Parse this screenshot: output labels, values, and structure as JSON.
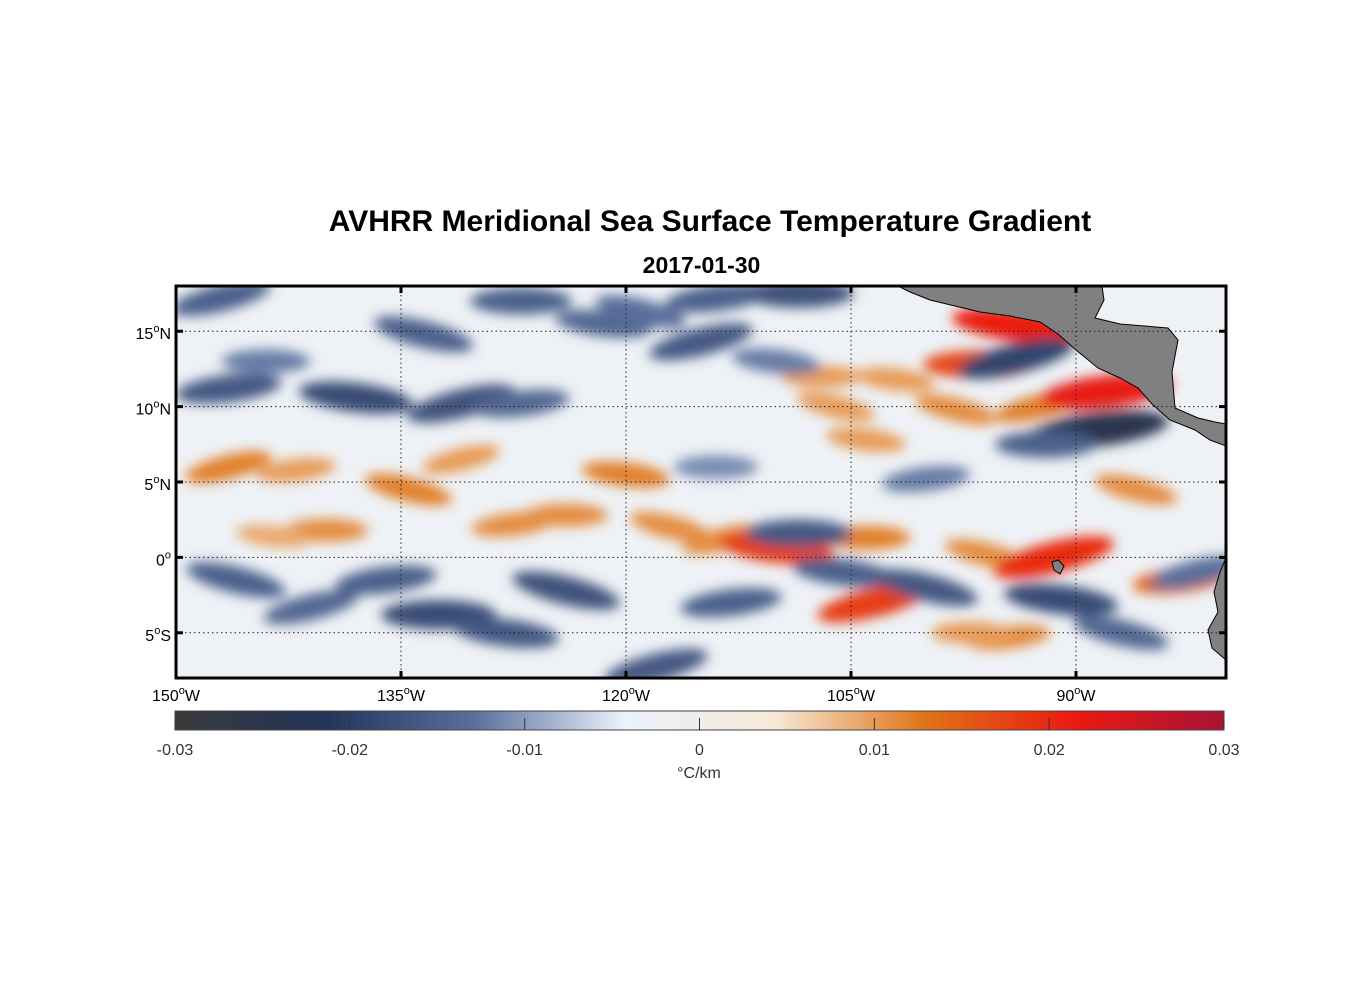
{
  "title": "AVHRR Meridional Sea Surface Temperature Gradient",
  "subtitle": "2017-01-30",
  "map": {
    "lon_range": [
      -150,
      -80
    ],
    "lat_range": [
      -8,
      18
    ],
    "land_color": "#808080",
    "gridlines": "dotted",
    "lat_ticks": [
      {
        "value": 15,
        "num": "15",
        "hemi": "N"
      },
      {
        "value": 10,
        "num": "10",
        "hemi": "N"
      },
      {
        "value": 5,
        "num": "5",
        "hemi": "N"
      },
      {
        "value": 0,
        "num": "0",
        "hemi": ""
      },
      {
        "value": -5,
        "num": "5",
        "hemi": "S"
      }
    ],
    "lon_ticks": [
      {
        "value": -150,
        "num": "150",
        "hemi": "W"
      },
      {
        "value": -135,
        "num": "135",
        "hemi": "W"
      },
      {
        "value": -120,
        "num": "120",
        "hemi": "W"
      },
      {
        "value": -105,
        "num": "105",
        "hemi": "W"
      },
      {
        "value": -90,
        "num": "90",
        "hemi": "W"
      }
    ]
  },
  "colorbar": {
    "min": -0.03,
    "max": 0.03,
    "ticks": [
      "-0.03",
      "-0.02",
      "-0.01",
      "0",
      "0.01",
      "0.02",
      "0.03"
    ],
    "tick_values": [
      -0.03,
      -0.02,
      -0.01,
      0,
      0.01,
      0.02,
      0.03
    ],
    "unit_label": "°C/km",
    "stops": [
      "#3a3a3c",
      "#223459",
      "#5a6f9c",
      "#eaf2fb",
      "#f7e9d8",
      "#df7418",
      "#eb1a10",
      "#a81336"
    ]
  },
  "features": {
    "warm": [
      {
        "lon": -146.5,
        "lat": 6.0,
        "value": 0.012
      },
      {
        "lon": -142.0,
        "lat": 5.8,
        "value": 0.01
      },
      {
        "lon": -140.0,
        "lat": 1.8,
        "value": 0.011
      },
      {
        "lon": -143.5,
        "lat": 1.4,
        "value": 0.009
      },
      {
        "lon": -134.5,
        "lat": 4.5,
        "value": 0.012
      },
      {
        "lon": -131.0,
        "lat": 6.5,
        "value": 0.01
      },
      {
        "lon": -127.5,
        "lat": 2.2,
        "value": 0.011
      },
      {
        "lon": -124.0,
        "lat": 2.8,
        "value": 0.011
      },
      {
        "lon": -120.0,
        "lat": 5.5,
        "value": 0.012
      },
      {
        "lon": -117.0,
        "lat": 2.0,
        "value": 0.011
      },
      {
        "lon": -113.5,
        "lat": 1.2,
        "value": 0.011
      },
      {
        "lon": -109.0,
        "lat": 0.7,
        "value": 0.012
      },
      {
        "lon": -104.0,
        "lat": 1.3,
        "value": 0.012
      },
      {
        "lon": -110.0,
        "lat": 0.6,
        "value": 0.018
      },
      {
        "lon": -96.0,
        "lat": 0.2,
        "value": 0.011
      },
      {
        "lon": -91.5,
        "lat": 0.0,
        "value": 0.02
      },
      {
        "lon": -94.5,
        "lat": -5.3,
        "value": 0.011
      },
      {
        "lon": -97.0,
        "lat": -5.0,
        "value": 0.01
      },
      {
        "lon": -104.0,
        "lat": 7.8,
        "value": 0.01
      },
      {
        "lon": -98.0,
        "lat": 9.8,
        "value": 0.011
      },
      {
        "lon": -92.5,
        "lat": 10.0,
        "value": 0.012
      },
      {
        "lon": -88.0,
        "lat": 11.0,
        "value": 0.022
      },
      {
        "lon": -96.5,
        "lat": 12.8,
        "value": 0.017
      },
      {
        "lon": -94.0,
        "lat": 15.4,
        "value": 0.021
      },
      {
        "lon": -86.0,
        "lat": 4.5,
        "value": 0.011
      },
      {
        "lon": -103.5,
        "lat": -3.0,
        "value": 0.018
      },
      {
        "lon": -83.0,
        "lat": -1.5,
        "value": 0.014
      },
      {
        "lon": -107.0,
        "lat": 12.0,
        "value": 0.01
      },
      {
        "lon": -102.0,
        "lat": 11.8,
        "value": 0.01
      },
      {
        "lon": -106.0,
        "lat": 10.0,
        "value": 0.01
      }
    ],
    "cold": [
      {
        "lon": -147.0,
        "lat": 17.2,
        "value": -0.015
      },
      {
        "lon": -146.5,
        "lat": 11.2,
        "value": -0.016
      },
      {
        "lon": -144.0,
        "lat": 13.0,
        "value": -0.012
      },
      {
        "lon": -138.0,
        "lat": 10.6,
        "value": -0.018
      },
      {
        "lon": -133.5,
        "lat": 14.8,
        "value": -0.015
      },
      {
        "lon": -131.0,
        "lat": 10.2,
        "value": -0.017
      },
      {
        "lon": -127.0,
        "lat": 10.2,
        "value": -0.014
      },
      {
        "lon": -127.0,
        "lat": 17.0,
        "value": -0.015
      },
      {
        "lon": -121.5,
        "lat": 15.5,
        "value": -0.014
      },
      {
        "lon": -119.0,
        "lat": 16.3,
        "value": -0.013
      },
      {
        "lon": -115.0,
        "lat": 14.3,
        "value": -0.016
      },
      {
        "lon": -114.0,
        "lat": 17.2,
        "value": -0.015
      },
      {
        "lon": -108.5,
        "lat": 17.5,
        "value": -0.017
      },
      {
        "lon": -110.0,
        "lat": 13.0,
        "value": -0.012
      },
      {
        "lon": -146.0,
        "lat": -1.5,
        "value": -0.015
      },
      {
        "lon": -141.0,
        "lat": -3.3,
        "value": -0.014
      },
      {
        "lon": -136.0,
        "lat": -1.5,
        "value": -0.015
      },
      {
        "lon": -132.5,
        "lat": -3.8,
        "value": -0.018
      },
      {
        "lon": -128.0,
        "lat": -5.0,
        "value": -0.016
      },
      {
        "lon": -124.0,
        "lat": -2.2,
        "value": -0.017
      },
      {
        "lon": -118.0,
        "lat": -7.3,
        "value": -0.016
      },
      {
        "lon": -113.0,
        "lat": -3.0,
        "value": -0.015
      },
      {
        "lon": -108.5,
        "lat": 1.6,
        "value": -0.016
      },
      {
        "lon": -105.5,
        "lat": -1.0,
        "value": -0.015
      },
      {
        "lon": -100.0,
        "lat": -2.0,
        "value": -0.016
      },
      {
        "lon": -94.0,
        "lat": 13.2,
        "value": -0.019
      },
      {
        "lon": -88.5,
        "lat": 8.5,
        "value": -0.024
      },
      {
        "lon": -92.0,
        "lat": 7.5,
        "value": -0.015
      },
      {
        "lon": -91.0,
        "lat": -2.8,
        "value": -0.018
      },
      {
        "lon": -87.0,
        "lat": -5.0,
        "value": -0.014
      },
      {
        "lon": -82.0,
        "lat": -1.0,
        "value": -0.013
      },
      {
        "lon": -100.0,
        "lat": 5.2,
        "value": -0.012
      },
      {
        "lon": -114.0,
        "lat": 6.0,
        "value": -0.011
      }
    ]
  }
}
